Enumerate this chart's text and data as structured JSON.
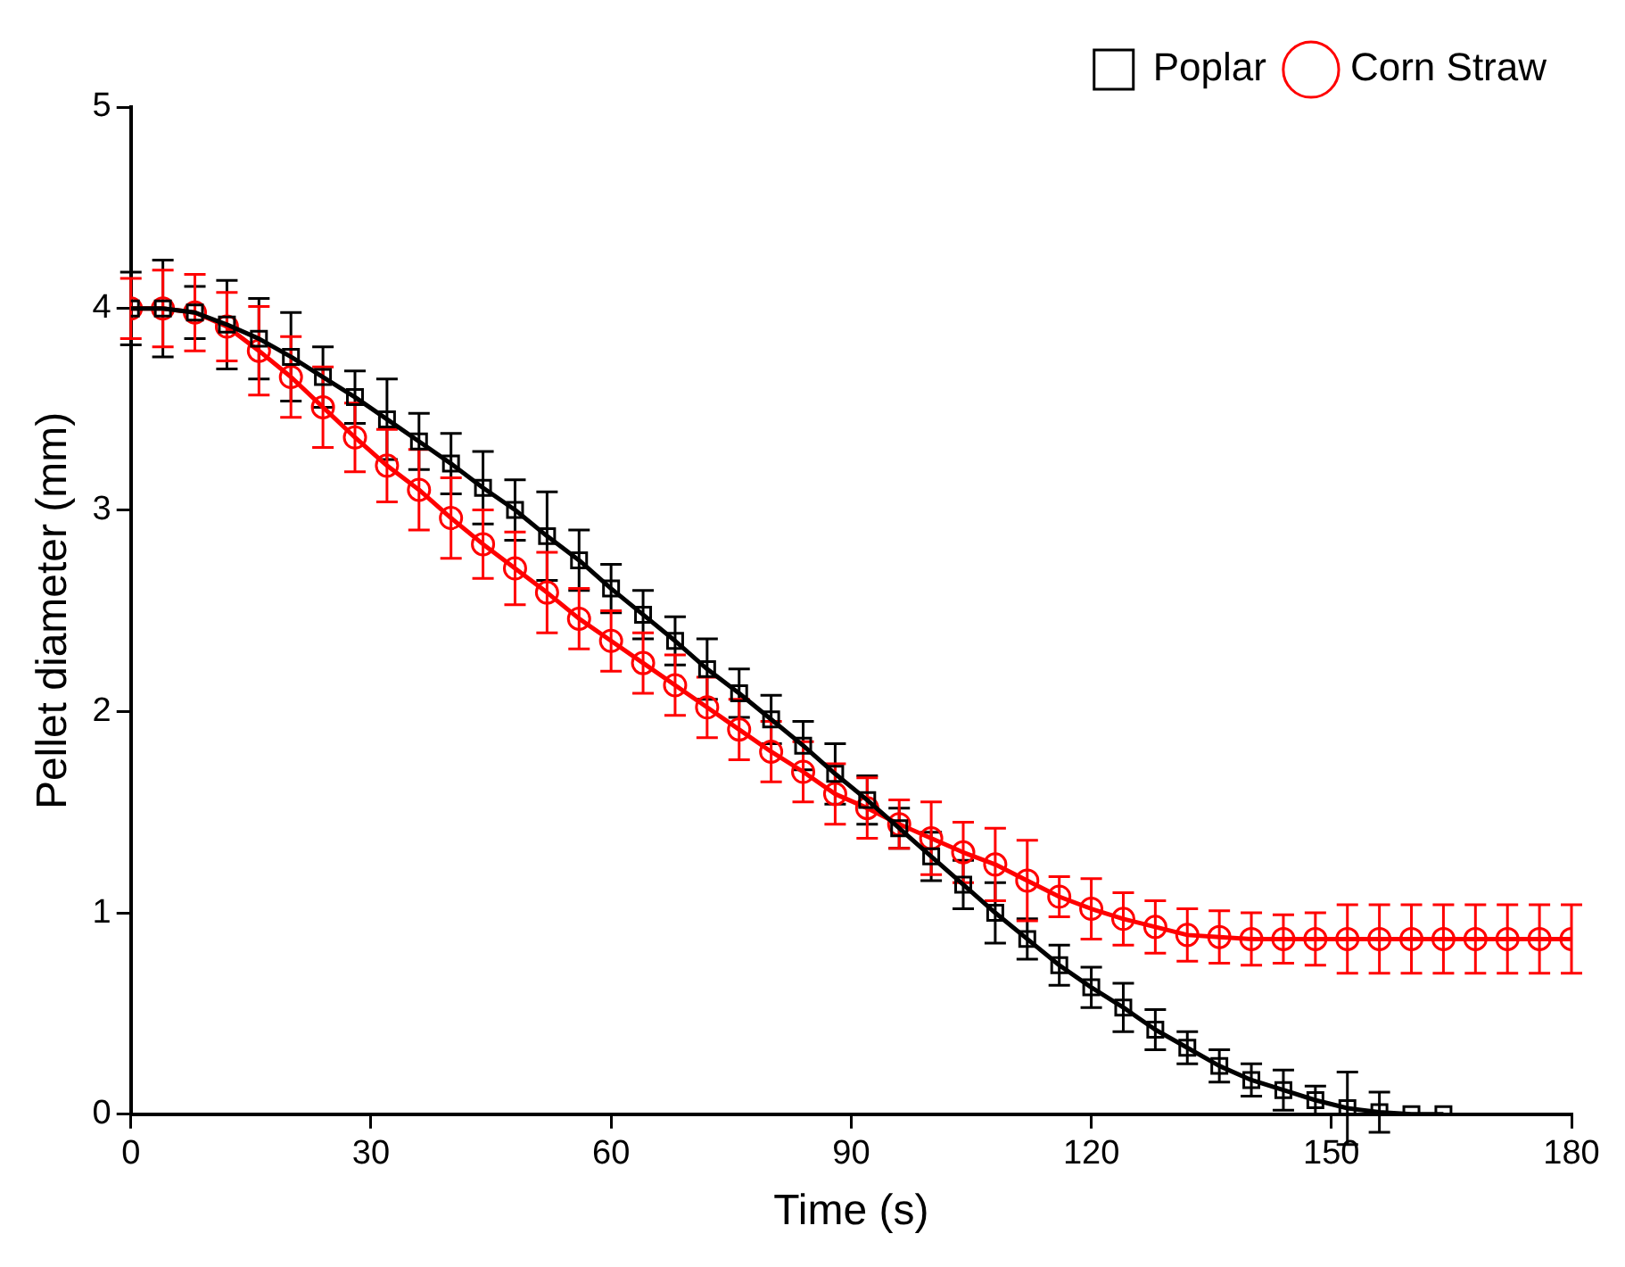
{
  "chart_data": {
    "type": "line",
    "xlabel": "Time (s)",
    "ylabel": "Pellet diameter (mm)",
    "xlim": [
      0,
      180
    ],
    "xticks": [
      0,
      30,
      60,
      90,
      120,
      150,
      180
    ],
    "ylim": [
      0,
      5
    ],
    "yticks": [
      0,
      1,
      2,
      3,
      4,
      5
    ],
    "grid": false,
    "legend": "top right",
    "line_style": "solid",
    "series": [
      {
        "name": "Poplar",
        "color": "#000000",
        "marker": "square",
        "x": [
          0,
          4,
          8,
          12,
          16,
          20,
          24,
          28,
          32,
          36,
          40,
          44,
          48,
          52,
          56,
          60,
          64,
          68,
          72,
          76,
          80,
          84,
          88,
          92,
          96,
          100,
          104,
          108,
          112,
          116,
          120,
          124,
          128,
          132,
          136,
          140,
          144,
          148,
          152,
          156,
          160,
          164
        ],
        "values": [
          4.0,
          4.0,
          3.98,
          3.92,
          3.85,
          3.76,
          3.66,
          3.56,
          3.45,
          3.34,
          3.23,
          3.11,
          3.0,
          2.87,
          2.75,
          2.61,
          2.48,
          2.35,
          2.21,
          2.09,
          1.96,
          1.83,
          1.69,
          1.56,
          1.42,
          1.28,
          1.14,
          1.0,
          0.87,
          0.74,
          0.63,
          0.53,
          0.42,
          0.33,
          0.24,
          0.17,
          0.12,
          0.07,
          0.03,
          0.01,
          0,
          0
        ],
        "errors": [
          0.18,
          0.24,
          0.13,
          0.22,
          0.2,
          0.22,
          0.15,
          0.13,
          0.2,
          0.14,
          0.15,
          0.18,
          0.15,
          0.22,
          0.15,
          0.12,
          0.12,
          0.12,
          0.15,
          0.12,
          0.12,
          0.12,
          0.15,
          0.12,
          0.1,
          0.12,
          0.12,
          0.15,
          0.1,
          0.1,
          0.1,
          0.12,
          0.1,
          0.08,
          0.08,
          0.08,
          0.1,
          0.07,
          0.18,
          0.1,
          null,
          null
        ]
      },
      {
        "name": "Corn Straw",
        "color": "#ff0000",
        "marker": "circle",
        "x": [
          0,
          4,
          8,
          12,
          16,
          20,
          24,
          28,
          32,
          36,
          40,
          44,
          48,
          52,
          56,
          60,
          64,
          68,
          72,
          76,
          80,
          84,
          88,
          92,
          96,
          100,
          104,
          108,
          112,
          116,
          120,
          124,
          128,
          132,
          136,
          140,
          144,
          148,
          152,
          156,
          160,
          164,
          168,
          172,
          176,
          180
        ],
        "values": [
          4.0,
          4.0,
          3.98,
          3.91,
          3.79,
          3.66,
          3.51,
          3.36,
          3.22,
          3.1,
          2.96,
          2.83,
          2.71,
          2.59,
          2.46,
          2.35,
          2.24,
          2.13,
          2.02,
          1.91,
          1.8,
          1.7,
          1.59,
          1.52,
          1.44,
          1.37,
          1.3,
          1.24,
          1.16,
          1.08,
          1.02,
          0.97,
          0.93,
          0.89,
          0.88,
          0.87,
          0.87,
          0.87,
          0.87,
          0.87,
          0.87,
          0.87,
          0.87,
          0.87,
          0.87,
          0.87
        ],
        "errors": [
          0.15,
          0.19,
          0.19,
          0.17,
          0.22,
          0.2,
          0.2,
          0.17,
          0.18,
          0.2,
          0.2,
          0.17,
          0.18,
          0.2,
          0.15,
          0.15,
          0.15,
          0.15,
          0.15,
          0.15,
          0.15,
          0.15,
          0.15,
          0.15,
          0.12,
          0.18,
          0.15,
          0.18,
          0.2,
          0.1,
          0.15,
          0.13,
          0.13,
          0.13,
          0.13,
          0.13,
          0.12,
          0.13,
          0.17,
          0.17,
          0.17,
          0.17,
          0.17,
          0.17,
          0.17,
          0.17
        ]
      }
    ]
  }
}
